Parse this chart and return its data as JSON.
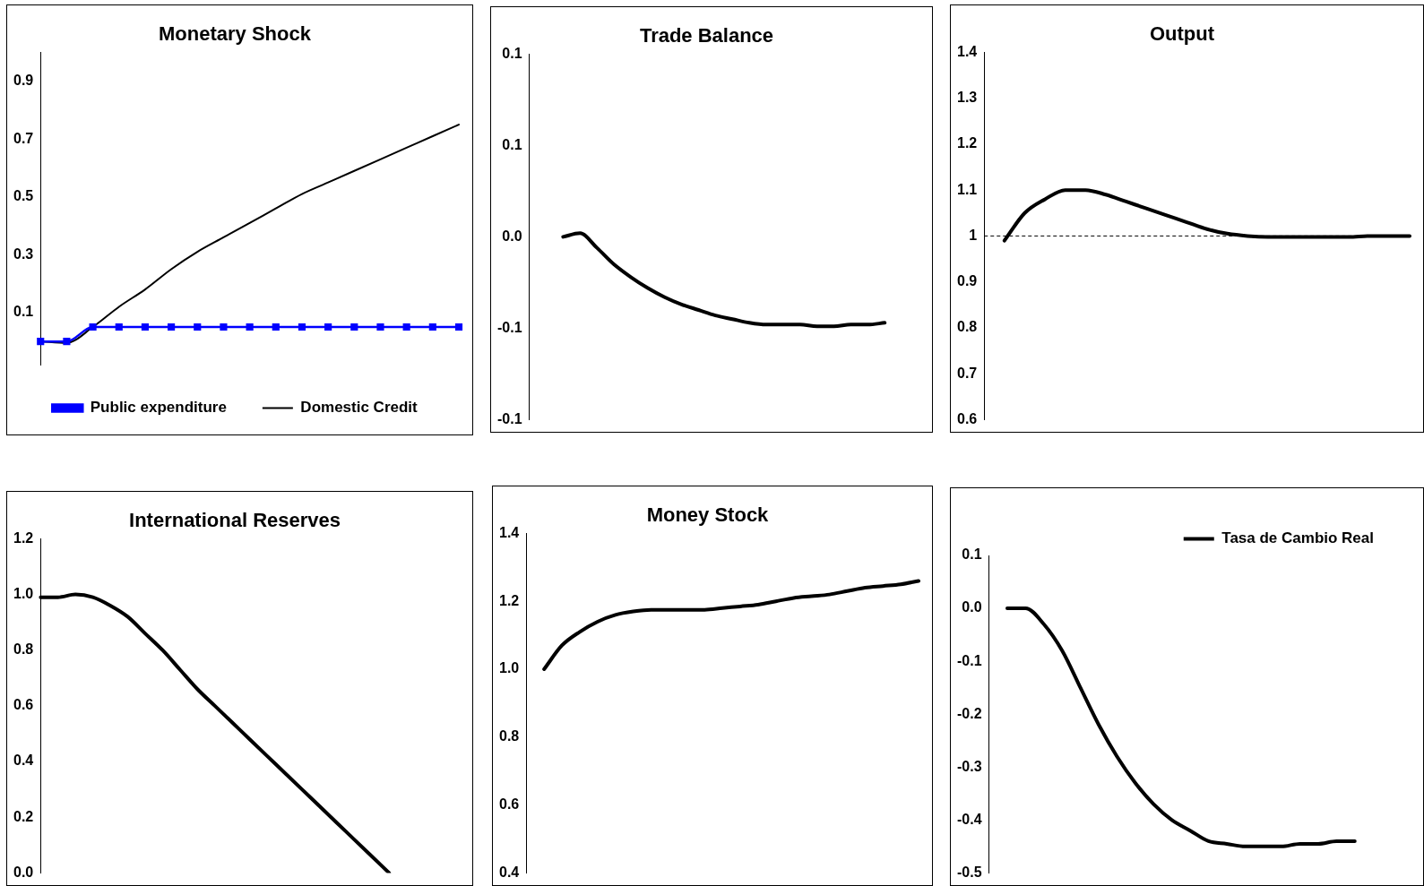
{
  "chart_data": [
    {
      "type": "line",
      "title": "Monetary Shock",
      "categories": [
        null,
        null,
        null,
        null,
        null,
        null,
        null,
        null,
        null,
        null,
        null,
        null,
        null,
        null,
        null,
        null,
        null
      ],
      "series": [
        {
          "name": "Public expenditure",
          "color": "#0000ff",
          "marker": "square",
          "values": [
            0,
            0,
            0.05,
            0.05,
            0.05,
            0.05,
            0.05,
            0.05,
            0.05,
            0.05,
            0.05,
            0.05,
            0.05,
            0.05,
            0.05,
            0.05,
            0.05
          ]
        },
        {
          "name": "Domestic Credit",
          "color": "#000000",
          "marker": "none",
          "values": [
            0,
            -0.005,
            0.05,
            0.12,
            0.18,
            0.25,
            0.31,
            0.36,
            0.41,
            0.46,
            0.51,
            0.55,
            0.59,
            0.63,
            0.67,
            0.71,
            0.75
          ]
        }
      ],
      "ylim": [
        -0.08,
        1.0
      ],
      "yticks": [
        0.1,
        0.3,
        0.5,
        0.7,
        0.9
      ],
      "grid": false,
      "legend": "bottom",
      "tick_labels": "y"
    },
    {
      "type": "line",
      "title": "Trade Balance",
      "categories": [
        null,
        null,
        null,
        null,
        null,
        null,
        null,
        null,
        null,
        null,
        null,
        null,
        null,
        null,
        null,
        null,
        null,
        null,
        null,
        null,
        null,
        null,
        null,
        null
      ],
      "series": [
        {
          "color": "#000000",
          "values": [
            null,
            null,
            0,
            0.002,
            -0.006,
            -0.015,
            -0.022,
            -0.028,
            -0.033,
            -0.037,
            -0.04,
            -0.043,
            -0.045,
            -0.047,
            -0.048,
            -0.048,
            -0.048,
            -0.049,
            -0.049,
            -0.048,
            -0.048,
            -0.047,
            null,
            null
          ]
        }
      ],
      "ylim": [
        -0.1,
        0.1
      ],
      "yticks": [
        {
          "value": -0.1,
          "label": "-0.1"
        },
        {
          "value": -0.05,
          "label": "-0.1"
        },
        {
          "value": 0,
          "label": "0.0"
        },
        {
          "value": 0.05,
          "label": "0.1"
        },
        {
          "value": 0.1,
          "label": "0.1"
        }
      ],
      "grid": false,
      "legend": false,
      "tick_labels": "y"
    },
    {
      "type": "line",
      "title": "Output",
      "categories": [
        null,
        null,
        null,
        null,
        null,
        null,
        null,
        null,
        null,
        null,
        null,
        null,
        null,
        null,
        null,
        null,
        null,
        null,
        null,
        null,
        null,
        null
      ],
      "series": [
        {
          "color": "#000000",
          "values": [
            null,
            0.99,
            1.05,
            1.08,
            1.1,
            1.1,
            1.09,
            1.075,
            1.06,
            1.045,
            1.03,
            1.015,
            1.005,
            1.0,
            0.998,
            0.998,
            0.998,
            0.998,
            0.998,
            1.0,
            1.0,
            1.0
          ]
        }
      ],
      "ylim": [
        0.6,
        1.4
      ],
      "yticks": [
        0.6,
        0.7,
        0.8,
        0.9,
        1,
        1.1,
        1.2,
        1.3,
        1.4
      ],
      "ref_lines": [
        {
          "axis": "y",
          "value": 1,
          "line_style": "dashed"
        }
      ],
      "grid": false,
      "legend": false,
      "tick_labels": "y"
    },
    {
      "type": "line",
      "title": "International Reserves",
      "categories": [
        null,
        null,
        null,
        null,
        null,
        null,
        null,
        null,
        null,
        null,
        null,
        null,
        null,
        null,
        null,
        null,
        null,
        null,
        null,
        null,
        null,
        null,
        null,
        null,
        null
      ],
      "series": [
        {
          "color": "#000000",
          "values": [
            0.99,
            0.99,
            1.0,
            0.99,
            0.96,
            0.92,
            0.86,
            0.8,
            0.73,
            0.66,
            0.6,
            0.54,
            0.48,
            0.42,
            0.36,
            0.3,
            0.24,
            0.18,
            0.12,
            0.06,
            0,
            null,
            null,
            null,
            null
          ]
        }
      ],
      "ylim": [
        0,
        1.2
      ],
      "yticks": [
        {
          "value": 0,
          "label": "0.0"
        },
        0.2,
        0.4,
        0.6,
        0.8,
        {
          "value": 1,
          "label": "1.0"
        },
        1.2
      ],
      "grid": false,
      "legend": false,
      "tick_labels": "y"
    },
    {
      "type": "line",
      "title": "Money Stock",
      "categories": [
        null,
        null,
        null,
        null,
        null,
        null,
        null,
        null,
        null,
        null,
        null,
        null,
        null,
        null,
        null,
        null,
        null,
        null,
        null,
        null,
        null,
        null,
        null
      ],
      "series": [
        {
          "color": "#000000",
          "values": [
            null,
            1.0,
            1.07,
            1.11,
            1.14,
            1.16,
            1.17,
            1.175,
            1.175,
            1.175,
            1.175,
            1.18,
            1.185,
            1.19,
            1.2,
            1.21,
            1.215,
            1.22,
            1.23,
            1.24,
            1.245,
            1.25,
            1.26
          ]
        }
      ],
      "ylim": [
        0.4,
        1.4
      ],
      "yticks": [
        0.4,
        0.6,
        0.8,
        {
          "value": 1,
          "label": "1.0"
        },
        1.2,
        1.4
      ],
      "grid": false,
      "legend": false,
      "tick_labels": "y"
    },
    {
      "type": "line",
      "categories": [
        null,
        null,
        null,
        null,
        null,
        null,
        null,
        null,
        null,
        null,
        null,
        null,
        null,
        null,
        null,
        null,
        null,
        null,
        null,
        null,
        null,
        null,
        null,
        null
      ],
      "series": [
        {
          "name": "Tasa de Cambio Real",
          "color": "#000000",
          "values": [
            null,
            0,
            0,
            -0.03,
            -0.08,
            -0.15,
            -0.22,
            -0.28,
            -0.33,
            -0.37,
            -0.4,
            -0.42,
            -0.44,
            -0.445,
            -0.45,
            -0.45,
            -0.45,
            -0.445,
            -0.445,
            -0.44,
            -0.44,
            null,
            null,
            null
          ]
        }
      ],
      "ylim": [
        -0.5,
        0.1
      ],
      "yticks": [
        -0.5,
        -0.4,
        -0.3,
        -0.2,
        -0.1,
        {
          "value": 0,
          "label": "0.0"
        },
        0.1
      ],
      "grid": false,
      "legend": "top right",
      "tick_labels": "y"
    }
  ]
}
